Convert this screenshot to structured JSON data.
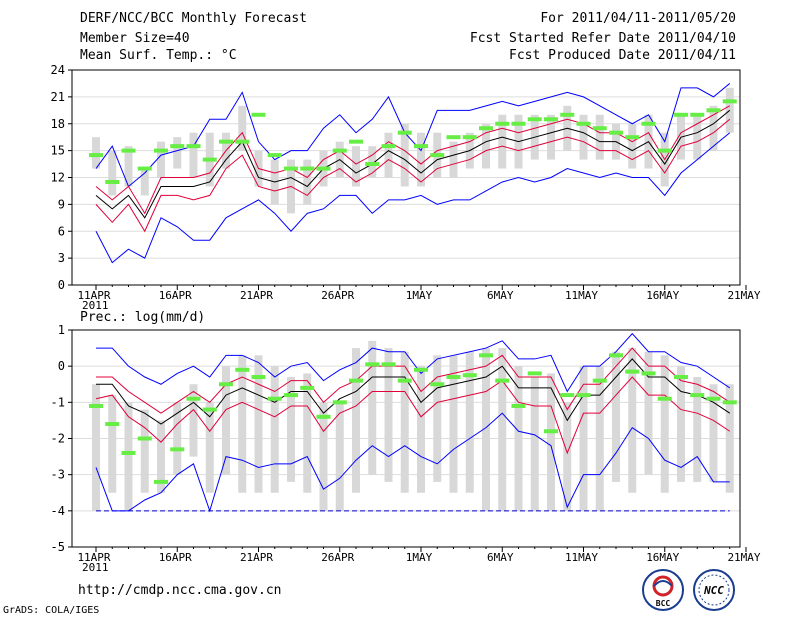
{
  "header": {
    "title": "DERF/NCC/BCC Monthly Forecast",
    "member_size": "Member Size=40",
    "variable": "Mean Surf. Temp.: °C",
    "forecast_period": "For 2011/04/11-2011/05/20",
    "refer_date": "Fcst Started Refer Date 2011/04/10",
    "produced_date": "Fcst Produced Date 2011/04/11"
  },
  "footer": {
    "url": "http://cmdp.ncc.cma.gov.cn",
    "credit": "GrADS: COLA/IGES"
  },
  "logos": {
    "bcc": "BCC",
    "ncc": "NCC"
  },
  "colors": {
    "envelope": "#0000ff",
    "spread": "#e0003a",
    "mean": "#000000",
    "observed": "#66ee44",
    "box": "#d8d8d8",
    "axis": "#000000",
    "baseline": "#0000cc"
  },
  "chart_data": [
    {
      "type": "line",
      "title": "Mean Surf. Temp.: °C",
      "xlabel": "",
      "ylabel": "°C",
      "x_days": [
        0,
        1,
        2,
        3,
        4,
        5,
        6,
        7,
        8,
        9,
        10,
        11,
        12,
        13,
        14,
        15,
        16,
        17,
        18,
        19,
        20,
        21,
        22,
        23,
        24,
        25,
        26,
        27,
        28,
        29,
        30,
        31,
        32,
        33,
        34,
        35,
        36,
        37,
        38,
        39
      ],
      "xtick_labels": [
        "11APR",
        "16APR",
        "21APR",
        "26APR",
        "1MAY",
        "6MAY",
        "11MAY",
        "16MAY",
        "21MAY"
      ],
      "xtick_days": [
        0,
        5,
        10,
        15,
        20,
        25,
        30,
        35,
        40
      ],
      "x_sub_label": "2011",
      "ylim": [
        0,
        24
      ],
      "yticks": [
        0,
        3,
        6,
        9,
        12,
        15,
        18,
        21,
        24
      ],
      "ytick_labels": [
        "0",
        "3",
        "6",
        "9",
        "12",
        "15",
        "18",
        "21",
        "24"
      ],
      "series": [
        {
          "name": "max",
          "values": [
            13,
            15.5,
            11,
            12.5,
            14.5,
            15,
            15.5,
            18.5,
            18.5,
            21.5,
            16,
            14,
            15,
            15,
            17.5,
            19,
            17,
            18.5,
            21,
            17,
            15,
            19.5,
            19.5,
            19.5,
            20,
            20.5,
            20,
            20.5,
            21,
            21.5,
            21,
            20,
            19,
            18,
            19,
            16,
            22,
            22,
            21,
            22.5
          ]
        },
        {
          "name": "upper",
          "values": [
            11,
            9.5,
            11,
            8,
            12,
            12,
            12,
            12.5,
            15,
            17,
            13,
            12.5,
            13,
            12,
            14,
            15,
            13.5,
            14.5,
            16,
            15,
            13.5,
            15,
            15.5,
            16,
            17,
            17.5,
            17,
            17.5,
            18,
            18.5,
            18,
            17,
            17,
            16,
            17,
            14,
            17,
            18,
            19,
            20
          ]
        },
        {
          "name": "mean",
          "values": [
            10,
            8.5,
            10,
            7.5,
            11,
            11,
            11,
            11.5,
            14,
            16,
            12,
            11.5,
            12,
            11,
            13,
            14,
            12.5,
            13.5,
            15,
            14,
            12.5,
            14,
            14.5,
            15,
            16,
            16.5,
            16,
            16.5,
            17,
            17.5,
            17,
            16,
            16,
            15,
            16,
            13.5,
            16.5,
            17,
            18,
            19.5
          ]
        },
        {
          "name": "lower",
          "values": [
            9,
            7,
            9,
            6,
            10,
            10,
            9.5,
            10,
            13,
            14.5,
            11,
            10.5,
            11,
            10,
            12,
            13,
            11.5,
            12.5,
            14,
            13,
            11.5,
            13,
            13.5,
            14,
            15,
            15.5,
            15,
            15.5,
            16,
            16.5,
            16,
            15,
            15,
            14,
            15,
            12.5,
            15.5,
            16,
            17,
            18.5
          ]
        },
        {
          "name": "min",
          "values": [
            6,
            2.5,
            4,
            3,
            7.5,
            6.5,
            5,
            5,
            7.5,
            8.5,
            9.5,
            8,
            6,
            8,
            8.5,
            10,
            10,
            8,
            9.5,
            9.5,
            10,
            9,
            9.5,
            9.5,
            10.5,
            11.5,
            12,
            11.5,
            12,
            13,
            12.5,
            12,
            12.5,
            12,
            12,
            10,
            12.5,
            14,
            15.5,
            17
          ]
        },
        {
          "name": "observed",
          "values": [
            14.5,
            11.5,
            15,
            13,
            15,
            15.5,
            15.5,
            14,
            16,
            16,
            19,
            14.5,
            13,
            13,
            13,
            15,
            16,
            13.5,
            15.5,
            17,
            15.5,
            14.5,
            16.5,
            16.5,
            17.5,
            18,
            18,
            18.5,
            18.5,
            19,
            18,
            17.5,
            17,
            16.5,
            18,
            15,
            19,
            19,
            19.5,
            20.5
          ]
        }
      ],
      "box_ranges": [
        [
          13,
          16.5
        ],
        [
          10,
          15
        ],
        [
          11,
          15.5
        ],
        [
          10,
          13
        ],
        [
          12,
          16
        ],
        [
          13,
          16.5
        ],
        [
          12,
          17
        ],
        [
          11,
          17
        ],
        [
          13,
          17
        ],
        [
          15,
          20
        ],
        [
          11,
          15
        ],
        [
          9,
          14
        ],
        [
          8,
          14
        ],
        [
          9,
          14
        ],
        [
          11,
          15
        ],
        [
          12,
          16
        ],
        [
          11,
          15.5
        ],
        [
          12,
          15.5
        ],
        [
          12,
          17
        ],
        [
          11,
          18
        ],
        [
          11,
          17
        ],
        [
          12,
          17
        ],
        [
          12,
          16
        ],
        [
          13,
          17
        ],
        [
          13,
          18
        ],
        [
          13,
          19
        ],
        [
          13,
          19
        ],
        [
          14,
          19
        ],
        [
          14,
          19
        ],
        [
          15,
          20
        ],
        [
          14,
          19
        ],
        [
          14,
          19
        ],
        [
          14,
          18
        ],
        [
          13,
          18
        ],
        [
          13,
          19
        ],
        [
          11,
          17
        ],
        [
          14,
          19
        ],
        [
          14,
          19
        ],
        [
          15,
          20
        ],
        [
          17,
          22
        ]
      ]
    },
    {
      "type": "line",
      "title": "Prec.: log(mm/d)",
      "xlabel": "",
      "ylabel": "log(mm/d)",
      "x_days": [
        0,
        1,
        2,
        3,
        4,
        5,
        6,
        7,
        8,
        9,
        10,
        11,
        12,
        13,
        14,
        15,
        16,
        17,
        18,
        19,
        20,
        21,
        22,
        23,
        24,
        25,
        26,
        27,
        28,
        29,
        30,
        31,
        32,
        33,
        34,
        35,
        36,
        37,
        38,
        39
      ],
      "xtick_labels": [
        "11APR",
        "16APR",
        "21APR",
        "26APR",
        "1MAY",
        "6MAY",
        "11MAY",
        "16MAY",
        "21MAY"
      ],
      "xtick_days": [
        0,
        5,
        10,
        15,
        20,
        25,
        30,
        35,
        40
      ],
      "x_sub_label": "2011",
      "ylim": [
        -5,
        1
      ],
      "yticks": [
        -5,
        -4,
        -3,
        -2,
        -1,
        0,
        1
      ],
      "ytick_labels": [
        "-5",
        "-4",
        "-3",
        "-2",
        "-1",
        "0",
        "1"
      ],
      "baseline": -4,
      "series": [
        {
          "name": "max",
          "values": [
            0.5,
            0.5,
            0,
            -0.3,
            -0.5,
            -0.2,
            0,
            -0.3,
            0.3,
            0.3,
            0.1,
            -0.3,
            0,
            0.1,
            -0.4,
            -0.1,
            0.1,
            0.5,
            0.4,
            0.4,
            -0.2,
            0.2,
            0.3,
            0.4,
            0.5,
            0.7,
            0.2,
            0.2,
            0.3,
            -0.7,
            0,
            0,
            0.4,
            0.9,
            0.4,
            0.4,
            0.1,
            0,
            -0.3,
            -0.6
          ]
        },
        {
          "name": "upper",
          "values": [
            -0.3,
            -0.3,
            -0.7,
            -1,
            -1.3,
            -1,
            -0.7,
            -1,
            -0.5,
            -0.3,
            -0.5,
            -0.7,
            -0.4,
            -0.4,
            -1,
            -0.6,
            -0.4,
            0,
            0,
            0,
            -0.7,
            -0.3,
            -0.2,
            -0.1,
            0,
            0.3,
            -0.3,
            -0.3,
            -0.3,
            -1.2,
            -0.5,
            -0.5,
            0,
            0.5,
            0,
            0,
            -0.4,
            -0.5,
            -0.7,
            -1
          ]
        },
        {
          "name": "mean",
          "values": [
            -0.5,
            -0.5,
            -1.1,
            -1.3,
            -1.6,
            -1.3,
            -1,
            -1.4,
            -0.8,
            -0.6,
            -0.8,
            -1,
            -0.7,
            -0.7,
            -1.3,
            -0.9,
            -0.7,
            -0.3,
            -0.3,
            -0.3,
            -1,
            -0.6,
            -0.5,
            -0.4,
            -0.3,
            0,
            -0.6,
            -0.6,
            -0.6,
            -1.5,
            -0.8,
            -0.8,
            -0.3,
            0.2,
            -0.3,
            -0.3,
            -0.7,
            -0.8,
            -1,
            -1.3
          ]
        },
        {
          "name": "lower",
          "values": [
            -0.9,
            -0.8,
            -1.4,
            -1.7,
            -2.1,
            -1.6,
            -1.2,
            -1.8,
            -1.2,
            -1,
            -1.2,
            -1.4,
            -1.1,
            -1.1,
            -1.8,
            -1.3,
            -1.1,
            -0.7,
            -0.7,
            -0.7,
            -1.4,
            -1,
            -0.9,
            -0.8,
            -0.7,
            -0.4,
            -1,
            -1.1,
            -1.1,
            -2.4,
            -1.3,
            -1.3,
            -0.8,
            -0.3,
            -0.8,
            -0.8,
            -1.2,
            -1.3,
            -1.5,
            -1.8
          ]
        },
        {
          "name": "min",
          "values": [
            -2.8,
            -4,
            -4,
            -3.7,
            -3.5,
            -3,
            -2.7,
            -4,
            -2.5,
            -2.6,
            -2.8,
            -2.7,
            -2.7,
            -2.5,
            -3.4,
            -3.1,
            -2.6,
            -2.2,
            -2.5,
            -2.2,
            -2.5,
            -2.7,
            -2.3,
            -2,
            -1.7,
            -1.3,
            -1.8,
            -1.9,
            -2.2,
            -3.9,
            -3,
            -3,
            -2.4,
            -1.7,
            -2,
            -2.6,
            -2.8,
            -2.5,
            -3.2,
            -3.2
          ]
        },
        {
          "name": "observed",
          "values": [
            -1.1,
            -1.6,
            -2.4,
            -2,
            -3.2,
            -2.3,
            -0.9,
            -1.2,
            -0.5,
            -0.1,
            -0.3,
            -0.9,
            -0.8,
            -0.6,
            -1.4,
            -1,
            -0.4,
            0.05,
            0.05,
            -0.4,
            -0.1,
            -0.5,
            -0.3,
            -0.25,
            0.3,
            -0.4,
            -1.1,
            -0.2,
            -1.8,
            -0.8,
            -0.8,
            -0.4,
            0.3,
            -0.15,
            -0.2,
            -0.9,
            -0.3,
            -0.8,
            -0.9,
            -1
          ]
        }
      ],
      "box_ranges": [
        [
          -4,
          -0.5
        ],
        [
          -3.5,
          -0.8
        ],
        [
          -4,
          -1
        ],
        [
          -3.5,
          -1.2
        ],
        [
          -3.5,
          -1.5
        ],
        [
          -3,
          -1
        ],
        [
          -2.5,
          -0.5
        ],
        [
          -3.5,
          -1
        ],
        [
          -3,
          0
        ],
        [
          -3.5,
          0.3
        ],
        [
          -3.5,
          0.3
        ],
        [
          -3.5,
          0
        ],
        [
          -3.2,
          -0.3
        ],
        [
          -3.5,
          -0.2
        ],
        [
          -4,
          -1
        ],
        [
          -4,
          -1
        ],
        [
          -3.5,
          0.5
        ],
        [
          -3,
          0.7
        ],
        [
          -3.2,
          0.5
        ],
        [
          -3.5,
          0.4
        ],
        [
          -3.5,
          0
        ],
        [
          -3.2,
          0.3
        ],
        [
          -3.5,
          0.3
        ],
        [
          -3.5,
          0.4
        ],
        [
          -4,
          0.5
        ],
        [
          -4,
          0.5
        ],
        [
          -4,
          0
        ],
        [
          -4,
          -0.3
        ],
        [
          -4,
          -0.2
        ],
        [
          -4,
          -1
        ],
        [
          -4,
          0
        ],
        [
          -4,
          0
        ],
        [
          -3.2,
          0.4
        ],
        [
          -3.5,
          0.5
        ],
        [
          -3,
          0.4
        ],
        [
          -3.5,
          0.3
        ],
        [
          -3.2,
          0
        ],
        [
          -3.2,
          -0.3
        ],
        [
          -3.2,
          -0.5
        ],
        [
          -3.5,
          -0.5
        ]
      ]
    }
  ]
}
